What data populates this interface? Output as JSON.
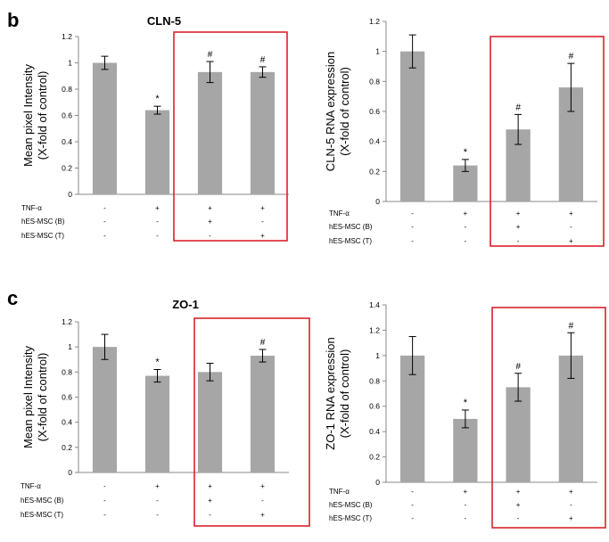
{
  "panels": [
    {
      "letter": "b"
    },
    {
      "letter": "c"
    }
  ],
  "conditions": {
    "rows": [
      "TNF-α",
      "hES-MSC (B)",
      "hES-MSC (T)"
    ],
    "symbols": [
      [
        "-",
        "+",
        "+",
        "+"
      ],
      [
        "-",
        "-",
        "+",
        "-"
      ],
      [
        "-",
        "-",
        "-",
        "+"
      ]
    ]
  },
  "colors": {
    "bar": "#a6a6a6",
    "highlight_box": "#d9232a",
    "axis": "#888888"
  },
  "chart_data": [
    {
      "type": "bar",
      "title": "CLN-5",
      "ylabel": [
        "Mean pixel Intensity",
        "(X-fold of control)"
      ],
      "ylim": [
        0,
        1.2
      ],
      "yticks": [
        "0",
        "0.2",
        "0.4",
        "0.6",
        "0.8",
        "1",
        "1.2"
      ],
      "values": [
        1.0,
        0.64,
        0.93,
        0.93
      ],
      "errors": [
        0.05,
        0.03,
        0.08,
        0.04
      ],
      "markers": [
        "",
        "*",
        "#",
        "#"
      ],
      "highlight": [
        2,
        3
      ]
    },
    {
      "type": "bar",
      "title": "",
      "ylabel": [
        "CLN-5 RNA expression",
        "(X-fold of control)"
      ],
      "ylim": [
        0,
        1.2
      ],
      "yticks": [
        "0",
        "0.2",
        "0.4",
        "0.6",
        "0.8",
        "1",
        "1.2"
      ],
      "values": [
        1.0,
        0.24,
        0.48,
        0.76
      ],
      "errors": [
        0.11,
        0.04,
        0.1,
        0.16
      ],
      "markers": [
        "",
        "*",
        "#",
        "#"
      ],
      "highlight": [
        2,
        3
      ]
    },
    {
      "type": "bar",
      "title": "ZO-1",
      "ylabel": [
        "Mean pixel Intensity",
        "(X-fold of control)"
      ],
      "ylim": [
        0,
        1.2
      ],
      "yticks": [
        "0",
        "0.2",
        "0.4",
        "0.6",
        "0.8",
        "1",
        "1.2"
      ],
      "values": [
        1.0,
        0.77,
        0.8,
        0.93
      ],
      "errors": [
        0.1,
        0.05,
        0.07,
        0.05
      ],
      "markers": [
        "",
        "*",
        "",
        "#"
      ],
      "highlight": [
        2,
        3
      ]
    },
    {
      "type": "bar",
      "title": "",
      "ylabel": [
        "ZO-1 RNA expression",
        "(X-fold of control)"
      ],
      "ylim": [
        0,
        1.4
      ],
      "yticks": [
        "0",
        "0.2",
        "0.4",
        "0.6",
        "0.8",
        "1",
        "1.2",
        "1.4"
      ],
      "values": [
        1.0,
        0.5,
        0.75,
        1.0
      ],
      "errors": [
        0.15,
        0.07,
        0.11,
        0.18
      ],
      "markers": [
        "",
        "*",
        "#",
        "#"
      ],
      "highlight": [
        2,
        3
      ]
    }
  ]
}
